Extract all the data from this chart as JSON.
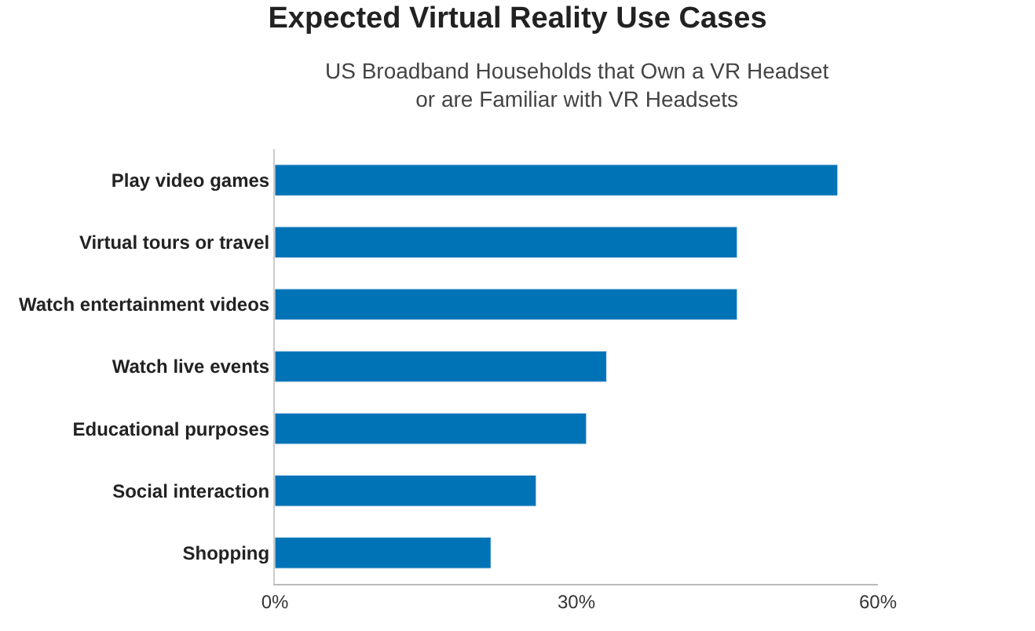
{
  "chart_data": {
    "type": "bar",
    "orientation": "horizontal",
    "title": "Expected Virtual Reality Use Cases",
    "subtitle": "US Broadband Households that Own a VR Headset\nor are Familiar with VR Headsets",
    "categories": [
      "Play video games",
      "Virtual tours or travel",
      "Watch entertainment videos",
      "Watch live events",
      "Educational purposes",
      "Social interaction",
      "Shopping"
    ],
    "values": [
      56,
      46,
      46,
      33,
      31,
      26,
      21.5
    ],
    "color": "#0073b7",
    "xlim": [
      0,
      60
    ],
    "xticks": [
      {
        "value": 0,
        "label": "0%"
      },
      {
        "value": 30,
        "label": "30%"
      },
      {
        "value": 60,
        "label": "60%"
      }
    ],
    "legend": false
  }
}
